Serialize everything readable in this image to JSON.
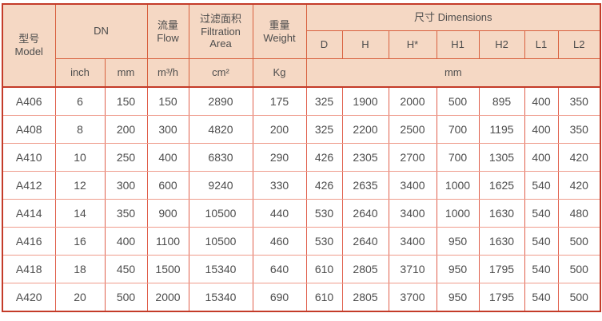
{
  "page": {
    "background": "#ffffff"
  },
  "colors": {
    "header_bg": "#f5d8c4",
    "header_grid": "#d8603e",
    "body_grid_vertical": "#e0604c",
    "body_grid_horizontal": "#ef9c8c",
    "outer_border": "#c43b29",
    "text": "#4d4d4d"
  },
  "header": {
    "model_cn": "型号",
    "model_en": "Model",
    "dn": "DN",
    "flow_cn": "流量",
    "flow_en": "Flow",
    "filtration_cn": "过滤面积",
    "filtration_en": "Filtration Area",
    "weight_cn": "重量",
    "weight_en": "Weight",
    "dimensions": "尺寸 Dimensions",
    "dim_cols": [
      "D",
      "H",
      "H*",
      "H1",
      "H2",
      "L1",
      "L2"
    ],
    "unit_inch": "inch",
    "unit_mm": "mm",
    "unit_flow": "m³/h",
    "unit_area": "cm²",
    "unit_weight": "Kg",
    "unit_dim": "mm"
  },
  "rows": [
    {
      "model": "A406",
      "dn_inch": "6",
      "dn_mm": "150",
      "flow": "150",
      "area": "2890",
      "weight": "175",
      "dims": [
        "325",
        "1900",
        "2000",
        "500",
        "895",
        "400",
        "350"
      ]
    },
    {
      "model": "A408",
      "dn_inch": "8",
      "dn_mm": "200",
      "flow": "300",
      "area": "4820",
      "weight": "200",
      "dims": [
        "325",
        "2200",
        "2500",
        "700",
        "1195",
        "400",
        "350"
      ]
    },
    {
      "model": "A410",
      "dn_inch": "10",
      "dn_mm": "250",
      "flow": "400",
      "area": "6830",
      "weight": "290",
      "dims": [
        "426",
        "2305",
        "2700",
        "700",
        "1305",
        "400",
        "420"
      ]
    },
    {
      "model": "A412",
      "dn_inch": "12",
      "dn_mm": "300",
      "flow": "600",
      "area": "9240",
      "weight": "330",
      "dims": [
        "426",
        "2635",
        "3400",
        "1000",
        "1625",
        "540",
        "420"
      ]
    },
    {
      "model": "A414",
      "dn_inch": "14",
      "dn_mm": "350",
      "flow": "900",
      "area": "10500",
      "weight": "440",
      "dims": [
        "530",
        "2640",
        "3400",
        "1000",
        "1630",
        "540",
        "480"
      ]
    },
    {
      "model": "A416",
      "dn_inch": "16",
      "dn_mm": "400",
      "flow": "1100",
      "area": "10500",
      "weight": "460",
      "dims": [
        "530",
        "2640",
        "3400",
        "950",
        "1630",
        "540",
        "500"
      ]
    },
    {
      "model": "A418",
      "dn_inch": "18",
      "dn_mm": "450",
      "flow": "1500",
      "area": "15340",
      "weight": "640",
      "dims": [
        "610",
        "2805",
        "3710",
        "950",
        "1795",
        "540",
        "500"
      ]
    },
    {
      "model": "A420",
      "dn_inch": "20",
      "dn_mm": "500",
      "flow": "2000",
      "area": "15340",
      "weight": "690",
      "dims": [
        "610",
        "2805",
        "3700",
        "950",
        "1795",
        "540",
        "500"
      ]
    }
  ]
}
